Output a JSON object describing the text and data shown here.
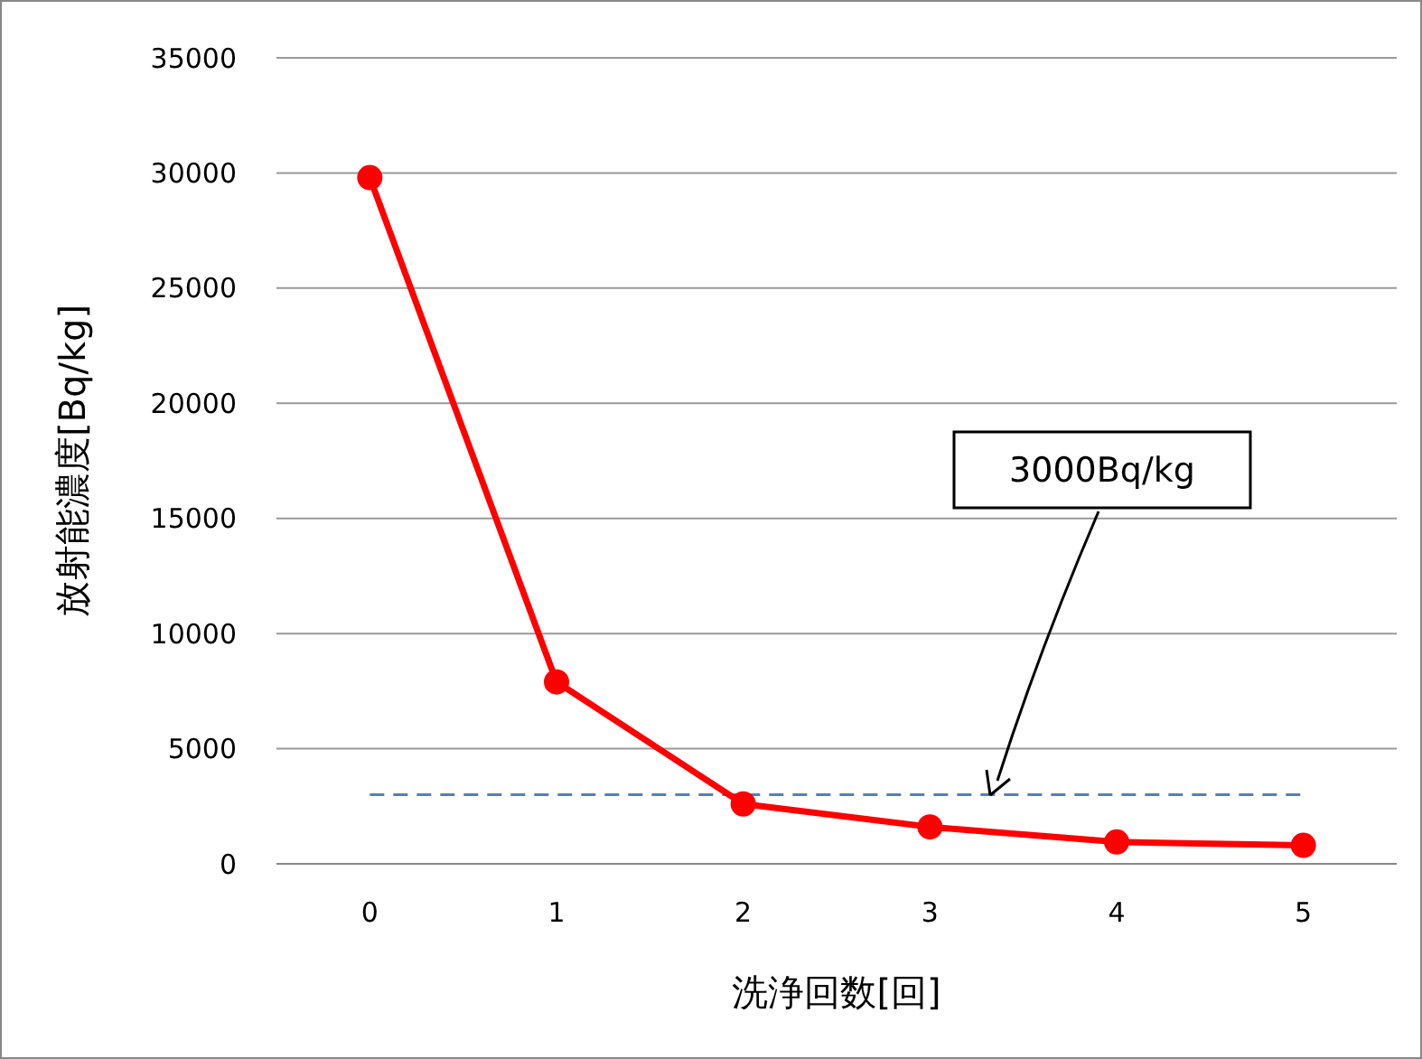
{
  "chart_data": {
    "type": "line",
    "xlabel": "洗浄回数[回]",
    "ylabel": "放射能濃度[Bq/kg]",
    "categories": [
      "0",
      "1",
      "2",
      "3",
      "4",
      "5"
    ],
    "series": [
      {
        "color": "#ff0000",
        "values": [
          29800,
          7900,
          2600,
          1600,
          950,
          800
        ]
      }
    ],
    "ylim": [
      0,
      35000
    ],
    "yticks": [
      0,
      5000,
      10000,
      15000,
      20000,
      25000,
      30000,
      35000
    ],
    "grid": "y",
    "marker": "circle",
    "line_style": "solid",
    "ref_lines": [
      {
        "axis": "y",
        "value": 3000,
        "color": "#4f81bd",
        "line_style": "dashed"
      }
    ],
    "annotations": [
      "3000Bq/kg"
    ]
  }
}
